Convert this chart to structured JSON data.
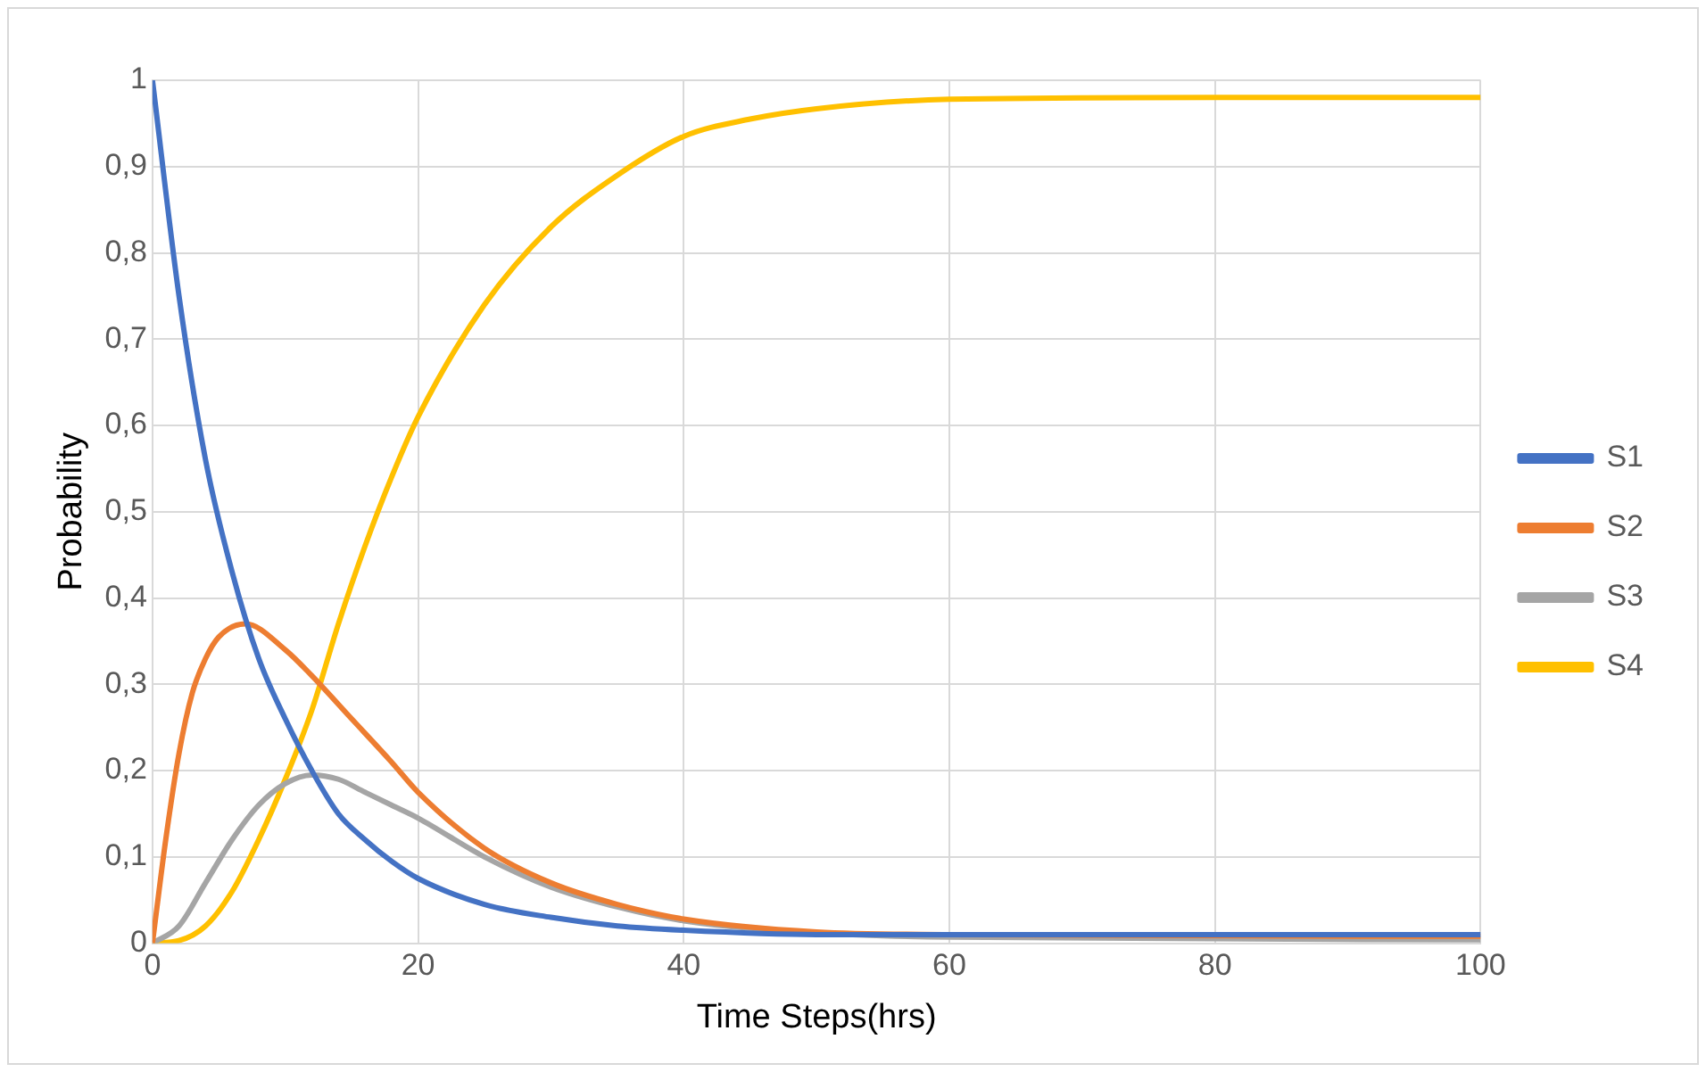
{
  "chart_data": {
    "type": "line",
    "xlabel": "Time Steps(hrs)",
    "ylabel": "Probability",
    "xlim": [
      0,
      100
    ],
    "xticks": [
      0,
      20,
      40,
      60,
      80,
      100
    ],
    "ylim": [
      0,
      1
    ],
    "yticks": [
      0,
      {
        "value": 0.1,
        "label": "0,1"
      },
      {
        "value": 0.2,
        "label": "0,2"
      },
      {
        "value": 0.3,
        "label": "0,3"
      },
      {
        "value": 0.4,
        "label": "0,4"
      },
      {
        "value": 0.5,
        "label": "0,5"
      },
      {
        "value": 0.6,
        "label": "0,6"
      },
      {
        "value": 0.7,
        "label": "0,7"
      },
      {
        "value": 0.8,
        "label": "0,8"
      },
      {
        "value": 0.9,
        "label": "0,9"
      },
      1
    ],
    "grid": true,
    "legend": "right",
    "marker": "none",
    "line_style": "solid",
    "series": [
      {
        "name": "S1",
        "color": "#4472c4",
        "x": [
          0,
          2,
          4,
          6,
          8,
          10,
          12,
          14,
          16,
          18,
          20,
          25,
          30,
          35,
          40,
          50,
          60,
          100
        ],
        "values": [
          1,
          0.75,
          0.56,
          0.43,
          0.33,
          0.26,
          0.2,
          0.15,
          0.12,
          0.095,
          0.075,
          0.045,
          0.03,
          0.02,
          0.015,
          0.01,
          0.01,
          0.01
        ]
      },
      {
        "name": "S2",
        "color": "#ed7d31",
        "x": [
          0,
          1,
          2,
          3,
          4,
          5,
          7,
          10,
          12,
          15,
          18,
          20,
          25,
          30,
          35,
          40,
          50,
          60,
          100
        ],
        "values": [
          0,
          0.12,
          0.22,
          0.29,
          0.33,
          0.355,
          0.37,
          0.34,
          0.31,
          0.26,
          0.21,
          0.175,
          0.11,
          0.07,
          0.045,
          0.028,
          0.013,
          0.01,
          0.008
        ]
      },
      {
        "name": "S3",
        "color": "#a5a5a5",
        "x": [
          0,
          2,
          4,
          6,
          8,
          10,
          12,
          14,
          16,
          18,
          20,
          25,
          30,
          35,
          40,
          50,
          60,
          100
        ],
        "values": [
          0,
          0.02,
          0.07,
          0.12,
          0.16,
          0.185,
          0.195,
          0.19,
          0.175,
          0.16,
          0.145,
          0.1,
          0.065,
          0.042,
          0.026,
          0.012,
          0.007,
          0.004
        ]
      },
      {
        "name": "S4",
        "color": "#ffc000",
        "x": [
          0,
          2,
          4,
          6,
          8,
          10,
          12,
          14,
          16,
          18,
          20,
          25,
          30,
          35,
          40,
          45,
          50,
          60,
          80,
          100
        ],
        "values": [
          0,
          0.003,
          0.02,
          0.06,
          0.12,
          0.19,
          0.27,
          0.37,
          0.46,
          0.54,
          0.61,
          0.74,
          0.83,
          0.89,
          0.935,
          0.955,
          0.967,
          0.978,
          0.98,
          0.98
        ]
      }
    ]
  }
}
